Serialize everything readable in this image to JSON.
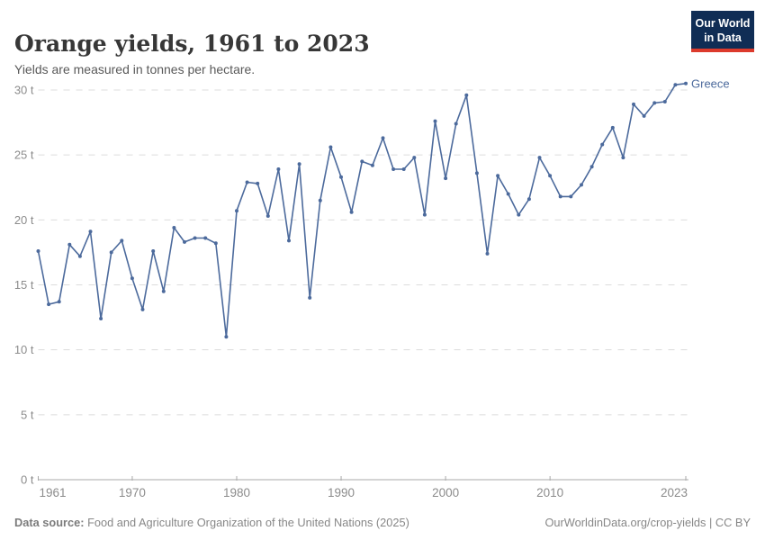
{
  "header": {
    "title": "Orange yields, 1961 to 2023",
    "subtitle": "Yields are measured in tonnes per hectare."
  },
  "logo": {
    "line1": "Our World",
    "line2": "in Data",
    "bg_color": "#102d55",
    "accent_color": "#dc3a2c"
  },
  "footer": {
    "datasource_label": "Data source:",
    "datasource_text": " Food and Agriculture Organization of the United Nations (2025)",
    "right_text": "OurWorldinData.org/crop-yields | CC BY"
  },
  "chart_data": {
    "type": "line",
    "title": "Orange yields, 1961 to 2023",
    "xlabel": "",
    "ylabel": "tonnes per hectare",
    "unit": "t",
    "xlim": [
      1961,
      2023
    ],
    "ylim": [
      0,
      30
    ],
    "grid": "horizontal-dashed",
    "legend": "end-of-line-label",
    "line_color": "#4c6a9c",
    "grid_color": "#dcdcdc",
    "axis_color": "#a8a8a8",
    "yticks": [
      {
        "value": 0,
        "label": "0 t"
      },
      {
        "value": 5,
        "label": "5 t"
      },
      {
        "value": 10,
        "label": "10 t"
      },
      {
        "value": 15,
        "label": "15 t"
      },
      {
        "value": 20,
        "label": "20 t"
      },
      {
        "value": 25,
        "label": "25 t"
      },
      {
        "value": 30,
        "label": "30 t"
      }
    ],
    "xticks": [
      {
        "value": 1961,
        "label": "1961"
      },
      {
        "value": 1970,
        "label": "1970"
      },
      {
        "value": 1980,
        "label": "1980"
      },
      {
        "value": 1990,
        "label": "1990"
      },
      {
        "value": 2000,
        "label": "2000"
      },
      {
        "value": 2010,
        "label": "2010"
      },
      {
        "value": 2023,
        "label": "2023"
      }
    ],
    "series": [
      {
        "name": "Greece",
        "color": "#4c6a9c",
        "x": [
          1961,
          1962,
          1963,
          1964,
          1965,
          1966,
          1967,
          1968,
          1969,
          1970,
          1971,
          1972,
          1973,
          1974,
          1975,
          1976,
          1977,
          1978,
          1979,
          1980,
          1981,
          1982,
          1983,
          1984,
          1985,
          1986,
          1987,
          1988,
          1989,
          1990,
          1991,
          1992,
          1993,
          1994,
          1995,
          1996,
          1997,
          1998,
          1999,
          2000,
          2001,
          2002,
          2003,
          2004,
          2005,
          2006,
          2007,
          2008,
          2009,
          2010,
          2011,
          2012,
          2013,
          2014,
          2015,
          2016,
          2017,
          2018,
          2019,
          2020,
          2021,
          2022,
          2023
        ],
        "values": [
          17.6,
          13.5,
          13.7,
          18.1,
          17.2,
          19.1,
          12.4,
          17.5,
          18.4,
          15.5,
          13.1,
          17.6,
          14.5,
          19.4,
          18.3,
          18.6,
          18.6,
          18.2,
          11.0,
          20.7,
          22.9,
          22.8,
          20.3,
          23.9,
          18.4,
          24.3,
          14.0,
          21.5,
          25.6,
          23.3,
          20.6,
          24.5,
          24.2,
          26.3,
          23.9,
          23.9,
          24.8,
          20.4,
          27.6,
          23.2,
          27.4,
          29.6,
          23.6,
          17.4,
          23.4,
          22.0,
          20.4,
          21.6,
          24.8,
          23.4,
          21.8,
          21.8,
          22.7,
          24.1,
          25.8,
          27.1,
          24.8,
          28.9,
          28.0,
          29.0,
          29.1,
          30.4,
          30.5
        ]
      }
    ]
  }
}
